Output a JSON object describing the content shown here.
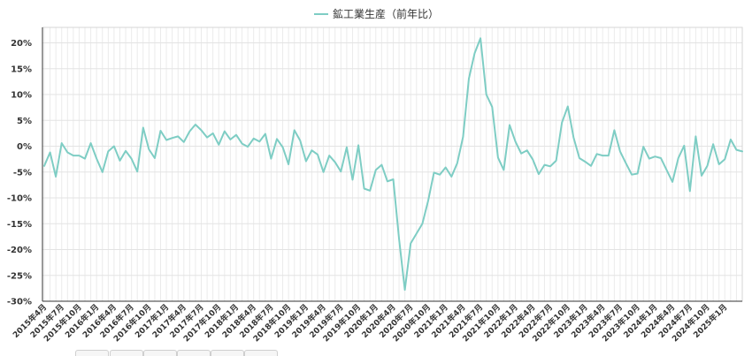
{
  "chart_data": {
    "type": "line",
    "legend_position": "top-center",
    "grid": true,
    "ylim": [
      -30,
      23
    ],
    "yticks": [
      20,
      15,
      10,
      5,
      0,
      -5,
      -10,
      -15,
      -20,
      -25,
      -30
    ],
    "ytick_labels": [
      "20%",
      "15%",
      "10%",
      "5%",
      "0%",
      "-5%",
      "-10%",
      "-15%",
      "-20%",
      "-25%",
      "-30%"
    ],
    "x_start": "2015年4月",
    "xtick_labels": [
      "2015年4月",
      "2015年7月",
      "2015年10月",
      "2016年1月",
      "2016年4月",
      "2016年7月",
      "2016年10月",
      "2017年1月",
      "2017年4月",
      "2017年7月",
      "2017年10月",
      "2018年1月",
      "2018年4月",
      "2018年7月",
      "2018年10月",
      "2019年1月",
      "2019年4月",
      "2019年7月",
      "2019年10月",
      "2020年1月",
      "2020年4月",
      "2020年7月",
      "2020年10月",
      "2021年1月",
      "2021年4月",
      "2021年7月",
      "2021年10月",
      "2022年1月",
      "2022年4月",
      "2022年7月",
      "2022年10月",
      "2023年1月",
      "2023年4月",
      "2023年7月",
      "2023年10月",
      "2024年1月",
      "2024年4月",
      "2024年7月",
      "2024年10月",
      "2025年1月"
    ],
    "series": [
      {
        "name": "鉱工業生産（前年比）",
        "color": "#7ecdc4",
        "values": [
          -3.8,
          -1.2,
          -5.9,
          0.6,
          -1.2,
          -1.8,
          -1.8,
          -2.4,
          0.6,
          -2.4,
          -5.0,
          -1.0,
          0.0,
          -2.8,
          -0.9,
          -2.4,
          -4.9,
          3.6,
          -0.6,
          -2.3,
          3.0,
          1.2,
          1.6,
          1.9,
          0.8,
          2.9,
          4.2,
          3.1,
          1.7,
          2.5,
          0.3,
          2.9,
          1.3,
          2.2,
          0.5,
          -0.1,
          1.5,
          0.9,
          2.4,
          -2.4,
          1.4,
          -0.2,
          -3.5,
          3.1,
          1.1,
          -2.9,
          -0.8,
          -1.6,
          -5.0,
          -1.8,
          -3.1,
          -4.9,
          -0.2,
          -6.5,
          0.2,
          -8.2,
          -8.6,
          -4.6,
          -3.6,
          -6.8,
          -6.4,
          -18.0,
          -27.8,
          -18.8,
          -16.9,
          -15.0,
          -10.6,
          -5.1,
          -5.5,
          -4.1,
          -5.9,
          -3.3,
          1.8,
          13.1,
          18.0,
          20.9,
          10.0,
          7.6,
          -2.2,
          -4.6,
          4.1,
          0.9,
          -1.4,
          -0.8,
          -2.6,
          -5.4,
          -3.6,
          -3.9,
          -2.8,
          4.6,
          7.7,
          1.7,
          -2.3,
          -3.0,
          -3.8,
          -1.5,
          -1.8,
          -1.8,
          3.1,
          -1.0,
          -3.3,
          -5.5,
          -5.3,
          -0.1,
          -2.4,
          -2.0,
          -2.3,
          -4.6,
          -6.9,
          -2.3,
          0.1,
          -8.7,
          1.9,
          -5.7,
          -3.8,
          0.4,
          -3.5,
          -2.5,
          1.3,
          -0.7,
          -1.0
        ]
      }
    ]
  }
}
